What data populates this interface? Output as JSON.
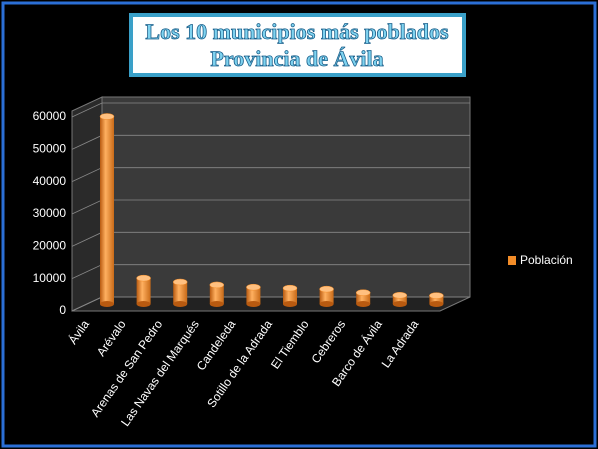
{
  "chart_data": {
    "type": "bar",
    "title": "Los 10 municipios más poblados",
    "subtitle": "Provincia de Ávila",
    "categories": [
      "Ávila",
      "Arévalo",
      "Arenas de San Pedro",
      "Las Navas del Marqués",
      "Candeleda",
      "Sotillo de la Adrada",
      "El Tiemblo",
      "Cebreros",
      "Barco de Ávila",
      "La Adrada"
    ],
    "series": [
      {
        "name": "Población",
        "color": "#f28c28",
        "values": [
          58000,
          8000,
          6800,
          5900,
          5200,
          4900,
          4600,
          3500,
          2700,
          2600
        ]
      }
    ],
    "ylim": [
      0,
      60000
    ],
    "yticks": [
      0,
      10000,
      20000,
      30000,
      40000,
      50000,
      60000
    ],
    "grid": true,
    "legend": "right"
  }
}
